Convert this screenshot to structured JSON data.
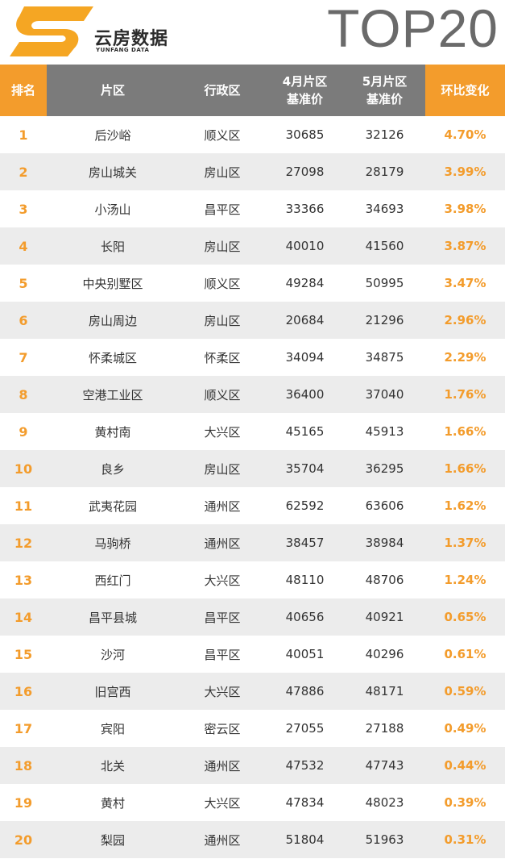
{
  "brand": {
    "name_cn": "云房数据",
    "name_en": "YUNFANG DATA",
    "logo_color": "#f5a623"
  },
  "title": "TOP20",
  "colors": {
    "accent": "#f39c2c",
    "header_gray": "#7b7b7b",
    "stripe": "#ececec"
  },
  "table": {
    "headers": [
      "排名",
      "片区",
      "行政区",
      "4月片区\n基准价",
      "5月片区\n基准价",
      "环比变化"
    ],
    "rows": [
      {
        "rank": "1",
        "area": "后沙峪",
        "district": "顺义区",
        "apr": "30685",
        "may": "32126",
        "change": "4.70%"
      },
      {
        "rank": "2",
        "area": "房山城关",
        "district": "房山区",
        "apr": "27098",
        "may": "28179",
        "change": "3.99%"
      },
      {
        "rank": "3",
        "area": "小汤山",
        "district": "昌平区",
        "apr": "33366",
        "may": "34693",
        "change": "3.98%"
      },
      {
        "rank": "4",
        "area": "长阳",
        "district": "房山区",
        "apr": "40010",
        "may": "41560",
        "change": "3.87%"
      },
      {
        "rank": "5",
        "area": "中央别墅区",
        "district": "顺义区",
        "apr": "49284",
        "may": "50995",
        "change": "3.47%"
      },
      {
        "rank": "6",
        "area": "房山周边",
        "district": "房山区",
        "apr": "20684",
        "may": "21296",
        "change": "2.96%"
      },
      {
        "rank": "7",
        "area": "怀柔城区",
        "district": "怀柔区",
        "apr": "34094",
        "may": "34875",
        "change": "2.29%"
      },
      {
        "rank": "8",
        "area": "空港工业区",
        "district": "顺义区",
        "apr": "36400",
        "may": "37040",
        "change": "1.76%"
      },
      {
        "rank": "9",
        "area": "黄村南",
        "district": "大兴区",
        "apr": "45165",
        "may": "45913",
        "change": "1.66%"
      },
      {
        "rank": "10",
        "area": "良乡",
        "district": "房山区",
        "apr": "35704",
        "may": "36295",
        "change": "1.66%"
      },
      {
        "rank": "11",
        "area": "武夷花园",
        "district": "通州区",
        "apr": "62592",
        "may": "63606",
        "change": "1.62%"
      },
      {
        "rank": "12",
        "area": "马驹桥",
        "district": "通州区",
        "apr": "38457",
        "may": "38984",
        "change": "1.37%"
      },
      {
        "rank": "13",
        "area": "西红门",
        "district": "大兴区",
        "apr": "48110",
        "may": "48706",
        "change": "1.24%"
      },
      {
        "rank": "14",
        "area": "昌平县城",
        "district": "昌平区",
        "apr": "40656",
        "may": "40921",
        "change": "0.65%"
      },
      {
        "rank": "15",
        "area": "沙河",
        "district": "昌平区",
        "apr": "40051",
        "may": "40296",
        "change": "0.61%"
      },
      {
        "rank": "16",
        "area": "旧宫西",
        "district": "大兴区",
        "apr": "47886",
        "may": "48171",
        "change": "0.59%"
      },
      {
        "rank": "17",
        "area": "宾阳",
        "district": "密云区",
        "apr": "27055",
        "may": "27188",
        "change": "0.49%"
      },
      {
        "rank": "18",
        "area": "北关",
        "district": "通州区",
        "apr": "47532",
        "may": "47743",
        "change": "0.44%"
      },
      {
        "rank": "19",
        "area": "黄村",
        "district": "大兴区",
        "apr": "47834",
        "may": "48023",
        "change": "0.39%"
      },
      {
        "rank": "20",
        "area": "梨园",
        "district": "通州区",
        "apr": "51804",
        "may": "51963",
        "change": "0.31%"
      }
    ]
  }
}
